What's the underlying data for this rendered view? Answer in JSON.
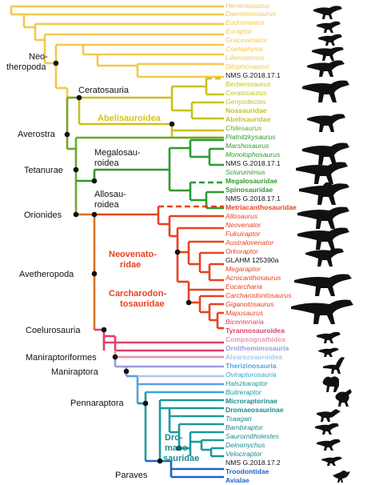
{
  "colors": {
    "basal": "#f2c94c",
    "ceratosauria": "#c9c21a",
    "tetanurae": "#6aa82a",
    "megalosauroidea": "#2e9a2e",
    "allosauroidea": "#e8421e",
    "coelurosauria": "#e0406a",
    "maniraptoriformes": "#9a9ae0",
    "maniraptora": "#5aa0e0",
    "pennaraptora": "#1a9aa0",
    "paraves": "#1a64c8",
    "node": "#111111",
    "silhouette": "#111111"
  },
  "taxa": [
    {
      "name": "Herrerasaurus",
      "style": "italic",
      "color": "#f2c94c"
    },
    {
      "name": "Daemonosaurus",
      "style": "italic",
      "color": "#f2c94c"
    },
    {
      "name": "Eodromaeus",
      "style": "italic",
      "color": "#f2c94c"
    },
    {
      "name": "Eoraptor",
      "style": "italic",
      "color": "#f2c94c"
    },
    {
      "name": "Gracovenator",
      "style": "italic",
      "color": "#f2c94c"
    },
    {
      "name": "Coelophysis",
      "style": "italic",
      "color": "#f2c94c"
    },
    {
      "name": "Liliensternus",
      "style": "italic",
      "color": "#f2c94c"
    },
    {
      "name": "Dilophosaurus",
      "style": "italic",
      "color": "#f2c94c"
    },
    {
      "name": "NMS G.2018.17.1",
      "style": "normal",
      "color": "#111111"
    },
    {
      "name": "Berberosaurus",
      "style": "italic",
      "color": "#c9c21a"
    },
    {
      "name": "Ceratosaurus",
      "style": "italic",
      "color": "#c9c21a"
    },
    {
      "name": "Genyodectes",
      "style": "italic",
      "color": "#c9c21a"
    },
    {
      "name": "Noasauridae",
      "style": "bold",
      "color": "#c9c21a"
    },
    {
      "name": "Abelisauridae",
      "style": "bold",
      "color": "#c9c21a"
    },
    {
      "name": "Chilesaurus",
      "style": "italic",
      "color": "#6aa82a"
    },
    {
      "name": "Piatnitzkysaurus",
      "style": "italic",
      "color": "#2e9a2e"
    },
    {
      "name": "Marshosaurus",
      "style": "italic",
      "color": "#2e9a2e"
    },
    {
      "name": "Monolophosaurus",
      "style": "italic",
      "color": "#2e9a2e"
    },
    {
      "name": "NMS G.2018.17.1",
      "style": "normal",
      "color": "#111111"
    },
    {
      "name": "Sciurumimus",
      "style": "italic",
      "color": "#2e9a2e"
    },
    {
      "name": "Megalosauridae",
      "style": "bold",
      "color": "#2e9a2e"
    },
    {
      "name": "Spinosauridae",
      "style": "bold",
      "color": "#2e9a2e"
    },
    {
      "name": "NMS G.2018.17.1",
      "style": "normal",
      "color": "#111111"
    },
    {
      "name": "Metriacanthosauridae",
      "style": "bold",
      "color": "#e8421e"
    },
    {
      "name": "Allosaurus",
      "style": "italic",
      "color": "#e8421e"
    },
    {
      "name": "Neovenator",
      "style": "italic",
      "color": "#e8421e"
    },
    {
      "name": "Fukuiraptor",
      "style": "italic",
      "color": "#e8421e"
    },
    {
      "name": "Australovenator",
      "style": "italic",
      "color": "#e8421e"
    },
    {
      "name": "Orkoraptor",
      "style": "italic",
      "color": "#e8421e"
    },
    {
      "name": "GLAHM 125390a",
      "style": "normal",
      "color": "#111111"
    },
    {
      "name": "Megaraptor",
      "style": "italic",
      "color": "#e8421e"
    },
    {
      "name": "Acrocanthosaurus",
      "style": "italic",
      "color": "#e8421e"
    },
    {
      "name": "Eocarcharia",
      "style": "italic",
      "color": "#e8421e"
    },
    {
      "name": "Carcharodontosaurus",
      "style": "italic",
      "color": "#e8421e"
    },
    {
      "name": "Giganotosaurus",
      "style": "italic",
      "color": "#e8421e"
    },
    {
      "name": "Mapusaurus",
      "style": "italic",
      "color": "#e8421e"
    },
    {
      "name": "Bicentenaria",
      "style": "italic",
      "color": "#e0406a"
    },
    {
      "name": "Tyrannosauroidea",
      "style": "bold",
      "color": "#e0406a"
    },
    {
      "name": "Compsognathidea",
      "style": "bold",
      "color": "#f090b0"
    },
    {
      "name": "Ornithomimosauria",
      "style": "bold",
      "color": "#9a9ae0"
    },
    {
      "name": "Alvarezsauroidea",
      "style": "bold",
      "color": "#a8c8f0"
    },
    {
      "name": "Therizinosauria",
      "style": "bold",
      "color": "#5aa0e0"
    },
    {
      "name": "Oviraptorosauria",
      "style": "italic",
      "color": "#30a8d8"
    },
    {
      "name": "Halszkaraptor",
      "style": "italic",
      "color": "#1a9aa0"
    },
    {
      "name": "Buitreraptor",
      "style": "italic",
      "color": "#1a9aa0"
    },
    {
      "name": "Microraptorinae",
      "style": "bold",
      "color": "#1a8a90"
    },
    {
      "name": "Dromaeosaurinae",
      "style": "bold",
      "color": "#1a8a90"
    },
    {
      "name": "Tsaagan",
      "style": "italic",
      "color": "#1a8a90"
    },
    {
      "name": "Bambiraptor",
      "style": "italic",
      "color": "#1a8a90"
    },
    {
      "name": "Saurornitholestes",
      "style": "italic",
      "color": "#1a8a90"
    },
    {
      "name": "Deinonychus",
      "style": "italic",
      "color": "#1a8a90"
    },
    {
      "name": "Velociraptor",
      "style": "italic",
      "color": "#1a8a90"
    },
    {
      "name": "NMS G.2018.17.2",
      "style": "normal",
      "color": "#111111"
    },
    {
      "name": "Troodontidae",
      "style": "bold",
      "color": "#1a64c8"
    },
    {
      "name": "Avialae",
      "style": "bold",
      "color": "#1a64c8"
    }
  ],
  "clades": {
    "neotheropoda": [
      "Neo-",
      "theropoda"
    ],
    "ceratosauria": "Ceratosauria",
    "abelisauroidea": "Abelisauroidea",
    "averostra": "Averostra",
    "megalosauroidea": [
      "Megalosau-",
      "roidea"
    ],
    "tetanurae": "Tetanurae",
    "allosauroidea": [
      "Allosau-",
      "roidea"
    ],
    "orionides": "Orionides",
    "neovenatoridae": [
      "Neovenato-",
      "ridae"
    ],
    "avetheropoda": "Avetheropoda",
    "carcharodontosauridae": [
      "Carcharodon-",
      "tosauridae"
    ],
    "coelurosauria": "Coelurosauria",
    "maniraptoriformes": "Maniraptoriformes",
    "maniraptora": "Maniraptora",
    "pennaraptora": "Pennaraptora",
    "dromaeosauridae": [
      "Dro-",
      "maeo-",
      "sauridae"
    ],
    "paraves": "Paraves"
  }
}
